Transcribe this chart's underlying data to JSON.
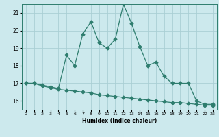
{
  "title": "",
  "xlabel": "Humidex (Indice chaleur)",
  "background_color": "#cce9ed",
  "line_color": "#2e7d6e",
  "grid_color": "#aacfd4",
  "x_values": [
    0,
    1,
    2,
    3,
    4,
    5,
    6,
    7,
    8,
    9,
    10,
    11,
    12,
    13,
    14,
    15,
    16,
    17,
    18,
    19,
    20,
    21,
    22,
    23
  ],
  "line1_y": [
    17.0,
    17.0,
    16.9,
    16.8,
    16.7,
    18.6,
    18.0,
    19.8,
    20.5,
    19.3,
    19.0,
    19.5,
    21.5,
    20.4,
    19.1,
    18.0,
    18.2,
    17.4,
    17.0,
    17.0,
    17.0,
    16.0,
    15.8,
    15.8
  ],
  "line2_y": [
    17.0,
    17.0,
    16.85,
    16.75,
    16.65,
    16.6,
    16.55,
    16.5,
    16.45,
    16.35,
    16.3,
    16.25,
    16.2,
    16.15,
    16.1,
    16.05,
    16.0,
    15.95,
    15.9,
    15.9,
    15.85,
    15.8,
    15.75,
    15.75
  ],
  "xlim": [
    -0.5,
    23.5
  ],
  "ylim": [
    15.5,
    21.5
  ],
  "yticks": [
    16,
    17,
    18,
    19,
    20,
    21
  ],
  "xticks": [
    0,
    1,
    2,
    3,
    4,
    5,
    6,
    7,
    8,
    9,
    10,
    11,
    12,
    13,
    14,
    15,
    16,
    17,
    18,
    19,
    20,
    21,
    22,
    23
  ],
  "markersize": 2.5,
  "linewidth": 0.9
}
